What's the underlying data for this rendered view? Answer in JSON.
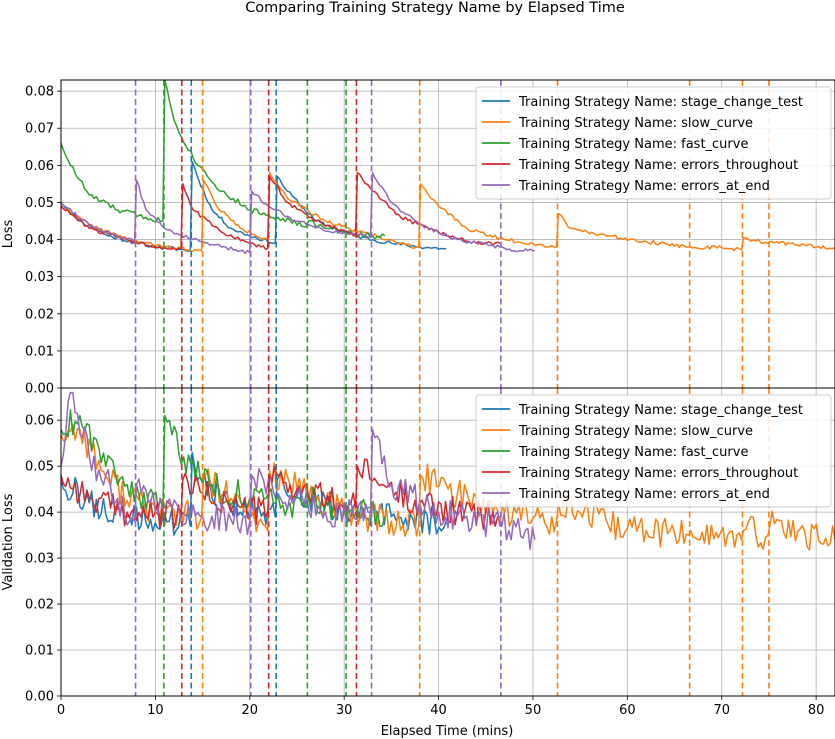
{
  "chart_data": {
    "type": "line",
    "title": "Comparing Training Strategy Name by Elapsed Time",
    "xlabel": "Elapsed Time (mins)",
    "xlim": [
      0,
      82
    ],
    "xticks": [
      0,
      10,
      20,
      30,
      40,
      50,
      60,
      70,
      80
    ],
    "grid": true,
    "legend_placement": "top-right",
    "colors": {
      "stage_change_test": "#1f77b4",
      "slow_curve": "#ff7f0e",
      "fast_curve": "#2ca02c",
      "errors_throughout": "#d62728",
      "errors_at_end": "#9467bd"
    },
    "legend_labels": [
      "Training Strategy Name: stage_change_test",
      "Training Strategy Name: slow_curve",
      "Training Strategy Name: fast_curve",
      "Training Strategy Name: errors_throughout",
      "Training Strategy Name: errors_at_end"
    ],
    "stage_changes": {
      "stage_change_test": [
        13.8,
        22.8
      ],
      "slow_curve": [
        15.0,
        38.0,
        52.6,
        66.6,
        72.2,
        75.0
      ],
      "fast_curve": [
        10.9,
        26.1,
        30.2
      ],
      "errors_throughout": [
        12.8,
        22.0,
        31.3
      ],
      "errors_at_end": [
        7.9,
        20.1,
        32.9,
        46.6
      ]
    },
    "panels": [
      {
        "ylabel": "Loss",
        "ylim": [
          0,
          0.083
        ],
        "yticks": [
          0.0,
          0.01,
          0.02,
          0.03,
          0.04,
          0.05,
          0.06,
          0.07,
          0.08
        ],
        "series": [
          {
            "key": "stage_change_test",
            "noise": 0.0005,
            "seed": 11,
            "points": [
              [
                0,
                0.05
              ],
              [
                2,
                0.045
              ],
              [
                5,
                0.041
              ],
              [
                9,
                0.0385
              ],
              [
                13.7,
                0.037
              ],
              [
                13.9,
                0.061
              ],
              [
                14.6,
                0.056
              ],
              [
                16,
                0.048
              ],
              [
                18,
                0.043
              ],
              [
                20,
                0.041
              ],
              [
                22.7,
                0.039
              ],
              [
                22.9,
                0.057
              ],
              [
                24,
                0.053
              ],
              [
                27,
                0.045
              ],
              [
                31,
                0.041
              ],
              [
                35,
                0.039
              ],
              [
                38,
                0.038
              ],
              [
                40.8,
                0.0375
              ]
            ]
          },
          {
            "key": "slow_curve",
            "noise": 0.0005,
            "seed": 22,
            "points": [
              [
                0,
                0.049
              ],
              [
                3,
                0.044
              ],
              [
                7,
                0.04
              ],
              [
                11,
                0.038
              ],
              [
                14.9,
                0.037
              ],
              [
                15.1,
                0.056
              ],
              [
                16.5,
                0.049
              ],
              [
                19,
                0.043
              ],
              [
                21.9,
                0.04
              ],
              [
                22.1,
                0.058
              ],
              [
                24,
                0.051
              ],
              [
                28,
                0.045
              ],
              [
                32,
                0.042
              ],
              [
                36,
                0.039
              ],
              [
                37.9,
                0.0378
              ],
              [
                38.1,
                0.055
              ],
              [
                40,
                0.049
              ],
              [
                43,
                0.043
              ],
              [
                47,
                0.04
              ],
              [
                52.5,
                0.038
              ],
              [
                52.7,
                0.047
              ],
              [
                54,
                0.043
              ],
              [
                58,
                0.041
              ],
              [
                62,
                0.0395
              ],
              [
                66.5,
                0.038
              ],
              [
                66.7,
                0.038
              ],
              [
                70,
                0.0378
              ],
              [
                72.1,
                0.0372
              ],
              [
                72.3,
                0.0405
              ],
              [
                74.9,
                0.039
              ],
              [
                75.1,
                0.0395
              ],
              [
                78,
                0.0385
              ],
              [
                82,
                0.0378
              ]
            ]
          },
          {
            "key": "fast_curve",
            "noise": 0.0008,
            "seed": 33,
            "points": [
              [
                0,
                0.066
              ],
              [
                1,
                0.06
              ],
              [
                3,
                0.052
              ],
              [
                6,
                0.048
              ],
              [
                9,
                0.046
              ],
              [
                10.8,
                0.045
              ],
              [
                11.0,
                0.083
              ],
              [
                12,
                0.072
              ],
              [
                14,
                0.062
              ],
              [
                17,
                0.053
              ],
              [
                20,
                0.048
              ],
              [
                23,
                0.046
              ],
              [
                26,
                0.0435
              ],
              [
                26.2,
                0.045
              ],
              [
                28,
                0.043
              ],
              [
                30.1,
                0.042
              ],
              [
                30.3,
                0.042
              ],
              [
                33,
                0.041
              ],
              [
                34.3,
                0.041
              ]
            ]
          },
          {
            "key": "errors_throughout",
            "noise": 0.0005,
            "seed": 44,
            "points": [
              [
                0,
                0.049
              ],
              [
                3,
                0.043
              ],
              [
                7,
                0.04
              ],
              [
                10,
                0.038
              ],
              [
                12.7,
                0.0375
              ],
              [
                12.9,
                0.055
              ],
              [
                14,
                0.048
              ],
              [
                17,
                0.042
              ],
              [
                20,
                0.039
              ],
              [
                21.9,
                0.0375
              ],
              [
                22.1,
                0.057
              ],
              [
                24,
                0.05
              ],
              [
                27,
                0.045
              ],
              [
                31.2,
                0.041
              ],
              [
                31.4,
                0.058
              ],
              [
                33,
                0.053
              ],
              [
                36,
                0.046
              ],
              [
                40,
                0.042
              ],
              [
                44,
                0.039
              ],
              [
                46.5,
                0.039
              ]
            ]
          },
          {
            "key": "errors_at_end",
            "noise": 0.0005,
            "seed": 55,
            "points": [
              [
                0,
                0.05
              ],
              [
                3,
                0.044
              ],
              [
                6,
                0.041
              ],
              [
                7.8,
                0.0395
              ],
              [
                8.0,
                0.056
              ],
              [
                9,
                0.048
              ],
              [
                11,
                0.043
              ],
              [
                14,
                0.04
              ],
              [
                17,
                0.038
              ],
              [
                20.0,
                0.0365
              ],
              [
                20.2,
                0.053
              ],
              [
                22,
                0.049
              ],
              [
                25,
                0.045
              ],
              [
                29,
                0.042
              ],
              [
                32.8,
                0.041
              ],
              [
                33.0,
                0.058
              ],
              [
                35,
                0.05
              ],
              [
                38,
                0.044
              ],
              [
                42,
                0.04
              ],
              [
                46.5,
                0.038
              ],
              [
                46.7,
                0.038
              ],
              [
                48,
                0.037
              ],
              [
                50.2,
                0.037
              ]
            ]
          }
        ]
      },
      {
        "ylabel": "Validation Loss",
        "ylim": [
          0,
          0.067
        ],
        "yticks": [
          0.0,
          0.01,
          0.02,
          0.03,
          0.04,
          0.05,
          0.06
        ],
        "series": [
          {
            "key": "stage_change_test",
            "noise": 0.0032,
            "seed": 66,
            "points": [
              [
                0,
                0.047
              ],
              [
                3,
                0.042
              ],
              [
                7,
                0.039
              ],
              [
                13.7,
                0.037
              ],
              [
                13.9,
                0.053
              ],
              [
                15,
                0.047
              ],
              [
                18,
                0.041
              ],
              [
                22.7,
                0.039
              ],
              [
                22.9,
                0.047
              ],
              [
                25,
                0.044
              ],
              [
                30,
                0.04
              ],
              [
                35,
                0.039
              ],
              [
                40.8,
                0.038
              ]
            ]
          },
          {
            "key": "slow_curve",
            "noise": 0.0034,
            "seed": 77,
            "points": [
              [
                0,
                0.057
              ],
              [
                2,
                0.058
              ],
              [
                5,
                0.047
              ],
              [
                9,
                0.041
              ],
              [
                14.9,
                0.039
              ],
              [
                15.1,
                0.047
              ],
              [
                18,
                0.043
              ],
              [
                21.9,
                0.036
              ],
              [
                22.1,
                0.049
              ],
              [
                25,
                0.045
              ],
              [
                30,
                0.04
              ],
              [
                35,
                0.038
              ],
              [
                37.9,
                0.037
              ],
              [
                38.1,
                0.048
              ],
              [
                42,
                0.044
              ],
              [
                47,
                0.04
              ],
              [
                52.5,
                0.038
              ],
              [
                52.7,
                0.042
              ],
              [
                58,
                0.037
              ],
              [
                62,
                0.036
              ],
              [
                66.5,
                0.035
              ],
              [
                66.7,
                0.036
              ],
              [
                72.1,
                0.034
              ],
              [
                72.3,
                0.036
              ],
              [
                74.9,
                0.035
              ],
              [
                75.1,
                0.037
              ],
              [
                82,
                0.034
              ]
            ]
          },
          {
            "key": "fast_curve",
            "noise": 0.0032,
            "seed": 88,
            "points": [
              [
                0,
                0.058
              ],
              [
                2,
                0.061
              ],
              [
                4,
                0.054
              ],
              [
                7,
                0.046
              ],
              [
                10.8,
                0.04
              ],
              [
                11.0,
                0.061
              ],
              [
                13,
                0.052
              ],
              [
                16,
                0.046
              ],
              [
                20,
                0.043
              ],
              [
                26,
                0.041
              ],
              [
                26.2,
                0.043
              ],
              [
                30.1,
                0.04
              ],
              [
                30.3,
                0.04
              ],
              [
                34.3,
                0.039
              ]
            ]
          },
          {
            "key": "errors_throughout",
            "noise": 0.0032,
            "seed": 99,
            "points": [
              [
                0,
                0.048
              ],
              [
                3,
                0.043
              ],
              [
                7,
                0.04
              ],
              [
                12.7,
                0.039
              ],
              [
                12.9,
                0.047
              ],
              [
                15,
                0.044
              ],
              [
                19,
                0.041
              ],
              [
                21.9,
                0.04
              ],
              [
                22.1,
                0.048
              ],
              [
                25,
                0.045
              ],
              [
                31.2,
                0.041
              ],
              [
                31.4,
                0.05
              ],
              [
                34,
                0.046
              ],
              [
                38,
                0.042
              ],
              [
                42,
                0.04
              ],
              [
                46.5,
                0.039
              ]
            ]
          },
          {
            "key": "errors_at_end",
            "noise": 0.0032,
            "seed": 111,
            "points": [
              [
                0,
                0.05
              ],
              [
                1,
                0.066
              ],
              [
                3,
                0.052
              ],
              [
                6,
                0.043
              ],
              [
                7.8,
                0.038
              ],
              [
                8.0,
                0.046
              ],
              [
                11,
                0.041
              ],
              [
                15,
                0.039
              ],
              [
                20.0,
                0.038
              ],
              [
                20.2,
                0.048
              ],
              [
                23,
                0.044
              ],
              [
                28,
                0.04
              ],
              [
                32.8,
                0.04
              ],
              [
                33.0,
                0.058
              ],
              [
                35,
                0.046
              ],
              [
                40,
                0.04
              ],
              [
                46.5,
                0.037
              ],
              [
                46.7,
                0.037
              ],
              [
                50.2,
                0.034
              ]
            ]
          }
        ]
      }
    ]
  }
}
